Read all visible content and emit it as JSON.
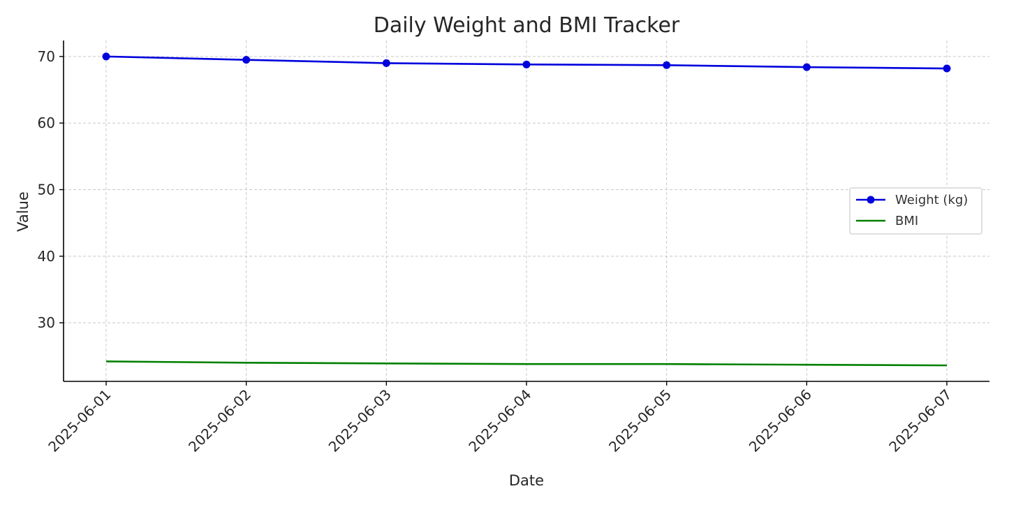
{
  "chart_data": {
    "type": "line",
    "title": "Daily Weight and BMI Tracker",
    "xlabel": "Date",
    "ylabel": "Value",
    "x": [
      "2025-06-01",
      "2025-06-02",
      "2025-06-03",
      "2025-06-04",
      "2025-06-05",
      "2025-06-06",
      "2025-06-07"
    ],
    "yticks": [
      30,
      40,
      50,
      60,
      70
    ],
    "ylim": [
      21.2,
      72.4
    ],
    "grid": true,
    "legend_position": "center-right",
    "series": [
      {
        "name": "Weight (kg)",
        "color": "#0000dd",
        "marker": "circle",
        "values": [
          70.0,
          69.5,
          69.0,
          68.8,
          68.7,
          68.4,
          68.2
        ]
      },
      {
        "name": "BMI",
        "color": "#008000",
        "marker": "none",
        "values": [
          24.2,
          24.0,
          23.9,
          23.8,
          23.8,
          23.7,
          23.6
        ]
      }
    ]
  }
}
